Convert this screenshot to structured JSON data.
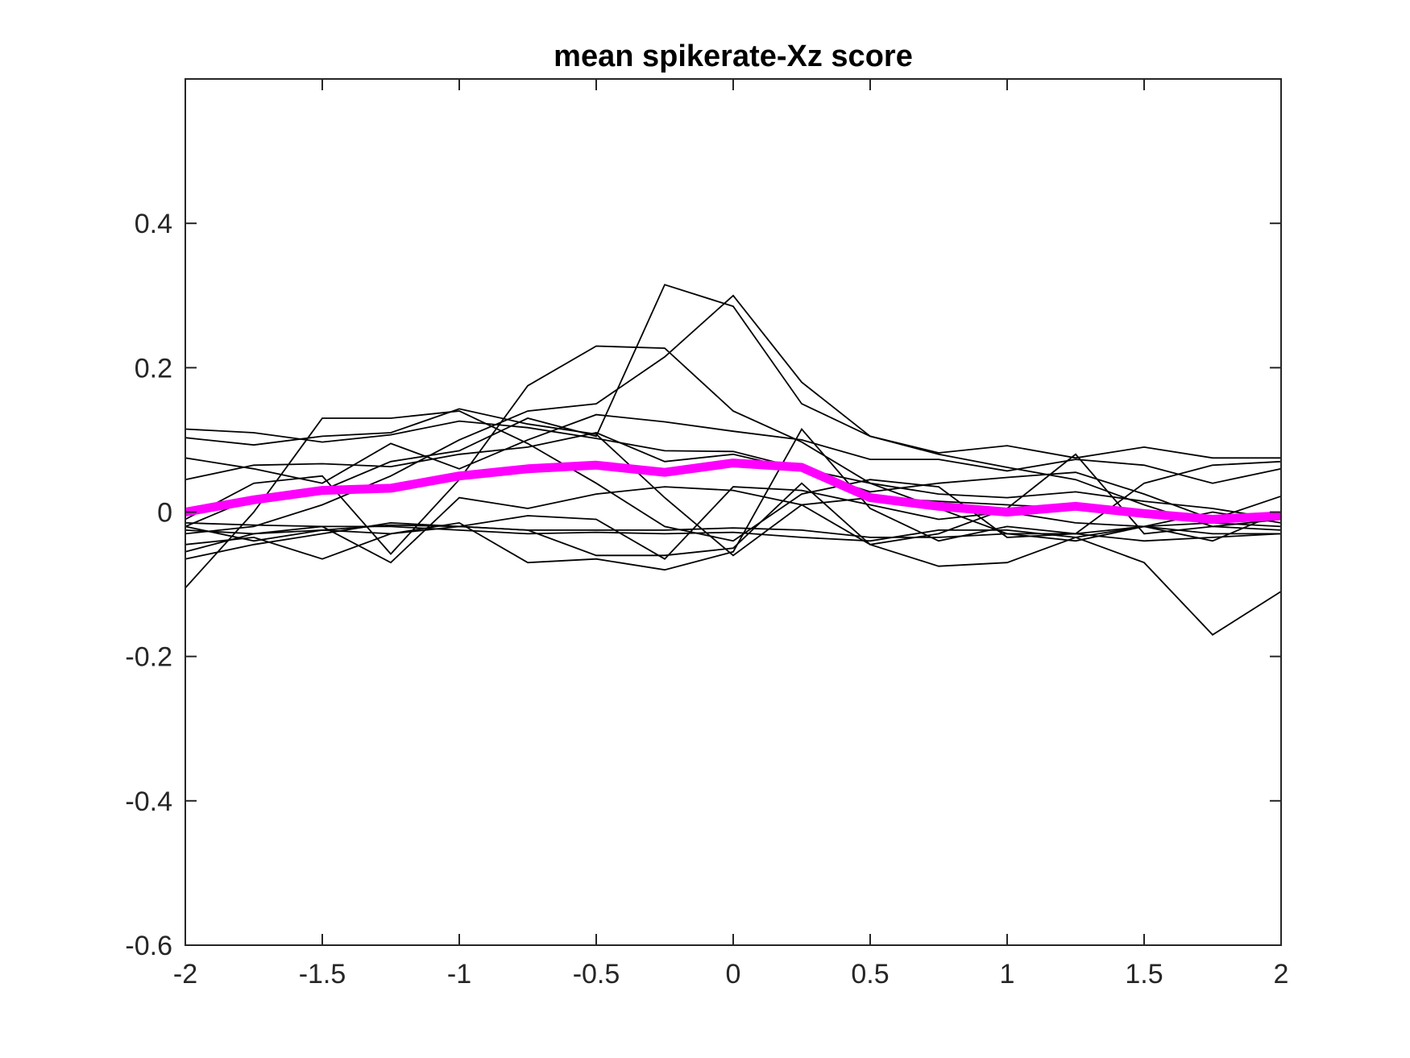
{
  "chart_data": {
    "type": "line",
    "title": "mean spikerate-Xz score",
    "xlabel": "",
    "ylabel": "",
    "xlim": [
      -2,
      2
    ],
    "ylim": [
      -0.6,
      0.6
    ],
    "xticks": [
      -2,
      -1.5,
      -1,
      -0.5,
      0,
      0.5,
      1,
      1.5,
      2
    ],
    "xtick_labels": [
      "-2",
      "-1.5",
      "-1",
      "-0.5",
      "0",
      "0.5",
      "1",
      "1.5",
      "2"
    ],
    "yticks": [
      -0.6,
      -0.4,
      -0.2,
      0,
      0.2,
      0.4
    ],
    "ytick_labels": [
      "-0.6",
      "-0.4",
      "-0.2",
      "0",
      "0.2",
      "0.4"
    ],
    "grid": false,
    "legend": "none",
    "x": [
      -2,
      -1.75,
      -1.5,
      -1.25,
      -1,
      -0.75,
      -0.5,
      -0.25,
      0,
      0.25,
      0.5,
      0.75,
      1,
      1.25,
      1.5,
      1.75,
      2
    ],
    "series_color": "#000000",
    "mean_color": "#ff00ff",
    "series": [
      {
        "values": [
          0.115,
          0.11,
          0.097,
          0.107,
          0.126,
          0.117,
          0.102,
          0.085,
          0.084,
          0.06,
          0.04,
          0.025,
          0.02,
          0.028,
          0.015,
          0.005,
          -0.01
        ]
      },
      {
        "values": [
          0.103,
          0.093,
          0.105,
          0.11,
          0.143,
          0.122,
          0.108,
          0.02,
          -0.06,
          0.01,
          0.02,
          0.015,
          0.01,
          0.005,
          0.0,
          -0.005,
          -0.01
        ]
      },
      {
        "values": [
          0.075,
          0.06,
          0.04,
          0.095,
          0.06,
          0.1,
          0.135,
          0.125,
          0.112,
          0.1,
          0.073,
          0.073,
          0.057,
          0.073,
          0.065,
          0.04,
          0.06
        ]
      },
      {
        "values": [
          0.045,
          0.065,
          0.067,
          0.063,
          0.08,
          0.09,
          0.11,
          0.07,
          0.08,
          0.058,
          0.028,
          0.04,
          0.048,
          0.055,
          0.025,
          -0.01,
          0.022
        ]
      },
      {
        "values": [
          -0.105,
          0.0,
          0.13,
          0.13,
          0.14,
          0.095,
          0.04,
          -0.02,
          -0.04,
          0.025,
          0.045,
          0.035,
          -0.035,
          -0.03,
          0.04,
          0.065,
          0.07
        ]
      },
      {
        "values": [
          -0.01,
          0.04,
          0.05,
          -0.058,
          0.045,
          0.175,
          0.23,
          0.227,
          0.14,
          0.097,
          0.04,
          0.005,
          -0.03,
          -0.04,
          -0.02,
          -0.03,
          -0.03
        ]
      },
      {
        "values": [
          -0.025,
          -0.03,
          -0.025,
          -0.018,
          -0.02,
          -0.025,
          -0.025,
          -0.025,
          -0.022,
          -0.025,
          -0.035,
          -0.035,
          -0.03,
          -0.03,
          -0.04,
          -0.035,
          -0.03
        ]
      },
      {
        "values": [
          -0.015,
          -0.018,
          -0.02,
          -0.02,
          -0.025,
          -0.03,
          -0.028,
          -0.03,
          -0.028,
          -0.035,
          -0.04,
          -0.025,
          -0.025,
          -0.035,
          -0.02,
          -0.015,
          -0.02
        ]
      },
      {
        "values": [
          -0.03,
          -0.02,
          0.01,
          0.05,
          0.1,
          0.14,
          0.15,
          0.215,
          0.3,
          0.18,
          0.105,
          0.082,
          0.092,
          0.075,
          0.09,
          0.075,
          0.075
        ]
      },
      {
        "values": [
          -0.02,
          0.02,
          0.03,
          0.07,
          0.085,
          0.13,
          0.105,
          0.315,
          0.285,
          0.15,
          0.105,
          0.08,
          0.062,
          0.045,
          0.01,
          -0.02,
          -0.025
        ]
      },
      {
        "values": [
          -0.065,
          -0.045,
          -0.03,
          -0.015,
          -0.02,
          -0.025,
          -0.06,
          -0.06,
          -0.05,
          0.04,
          -0.045,
          -0.03,
          0.005,
          0.08,
          -0.03,
          -0.02,
          -0.01
        ]
      },
      {
        "values": [
          -0.045,
          -0.035,
          -0.065,
          -0.03,
          -0.015,
          -0.07,
          -0.065,
          -0.08,
          -0.055,
          0.115,
          0.005,
          -0.04,
          -0.02,
          -0.03,
          -0.02,
          -0.04,
          0.0
        ]
      },
      {
        "values": [
          -0.055,
          -0.03,
          -0.02,
          -0.07,
          0.02,
          0.005,
          0.025,
          0.035,
          0.03,
          0.01,
          -0.045,
          -0.075,
          -0.07,
          -0.035,
          -0.07,
          -0.17,
          -0.11
        ]
      },
      {
        "values": [
          -0.02,
          -0.04,
          -0.025,
          -0.03,
          -0.02,
          -0.005,
          -0.01,
          -0.065,
          0.035,
          0.03,
          0.01,
          -0.01,
          0.0,
          -0.015,
          -0.02,
          0.0,
          -0.015
        ]
      }
    ],
    "mean": {
      "values": [
        0.0,
        0.017,
        0.03,
        0.033,
        0.05,
        0.06,
        0.065,
        0.055,
        0.068,
        0.062,
        0.02,
        0.008,
        0.0,
        0.008,
        -0.002,
        -0.01,
        -0.005
      ]
    }
  }
}
